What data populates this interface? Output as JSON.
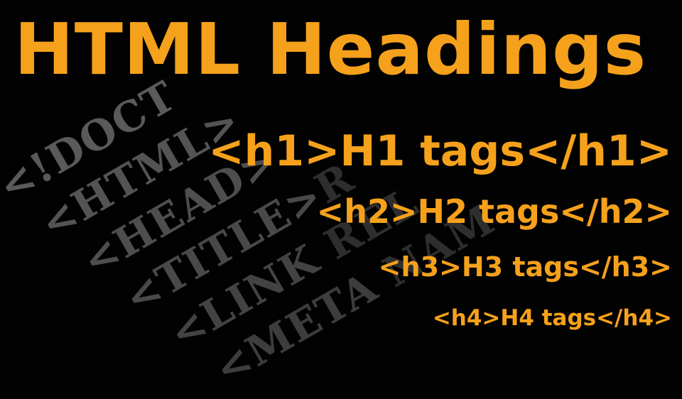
{
  "title": "HTML Headings",
  "heading_tags": [
    {
      "level": "h1",
      "text": "<h1>H1 tags</h1>"
    },
    {
      "level": "h2",
      "text": "<h2>H2 tags</h2>"
    },
    {
      "level": "h3",
      "text": "<h3>H3 tags</h3>"
    },
    {
      "level": "h4",
      "text": "<h4>H4 tags</h4>"
    }
  ],
  "background_code": [
    {
      "text": "<!DOCT",
      "trail": ""
    },
    {
      "text": "<HTML>",
      "trail": ""
    },
    {
      "text": "<HEAD>",
      "trail": ""
    },
    {
      "text": "<TITLE>",
      "trail": "R"
    },
    {
      "text": "<LINK ",
      "trail": "REL"
    },
    {
      "text": "<META ",
      "trail": "NAM"
    }
  ],
  "colors": {
    "background": "#020202",
    "accent": "#f5a11c",
    "code_gray": "#4a4a4a"
  }
}
